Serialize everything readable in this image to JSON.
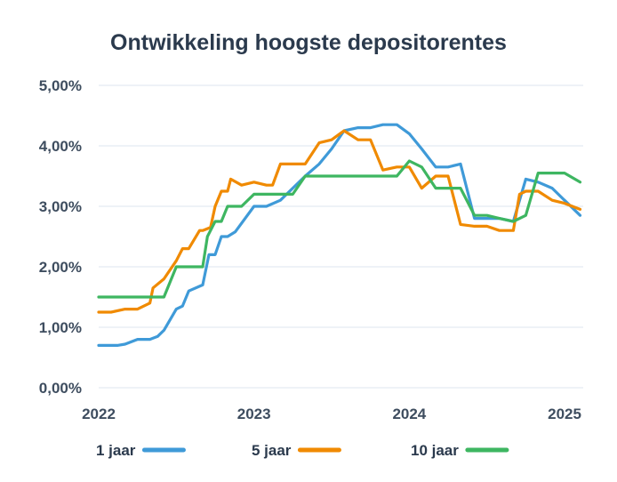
{
  "chart_data": {
    "type": "line",
    "title": "Ontwikkeling hoogste depositorentes",
    "xlabel": "",
    "ylabel": "",
    "xlim": [
      2022.0,
      2025.12
    ],
    "ylim": [
      0,
      5
    ],
    "y_ticks": [
      {
        "value": 0,
        "label": "0,00%"
      },
      {
        "value": 1,
        "label": "1,00%"
      },
      {
        "value": 2,
        "label": "2,00%"
      },
      {
        "value": 3,
        "label": "3,00%"
      },
      {
        "value": 4,
        "label": "4,00%"
      },
      {
        "value": 5,
        "label": "5,00%"
      }
    ],
    "x_ticks": [
      {
        "value": 2022,
        "label": "2022"
      },
      {
        "value": 2023,
        "label": "2023"
      },
      {
        "value": 2024,
        "label": "2024"
      },
      {
        "value": 2025,
        "label": "2025"
      }
    ],
    "grid": "horizontal",
    "legend_position": "bottom",
    "series": [
      {
        "name": "1 jaar",
        "color": "#3f9ad8",
        "points": [
          [
            2022.0,
            0.7
          ],
          [
            2022.12,
            0.7
          ],
          [
            2022.17,
            0.72
          ],
          [
            2022.25,
            0.8
          ],
          [
            2022.33,
            0.8
          ],
          [
            2022.38,
            0.85
          ],
          [
            2022.42,
            0.95
          ],
          [
            2022.5,
            1.3
          ],
          [
            2022.54,
            1.35
          ],
          [
            2022.58,
            1.6
          ],
          [
            2022.67,
            1.7
          ],
          [
            2022.71,
            2.2
          ],
          [
            2022.75,
            2.2
          ],
          [
            2022.79,
            2.5
          ],
          [
            2022.83,
            2.5
          ],
          [
            2022.88,
            2.58
          ],
          [
            2023.0,
            3.0
          ],
          [
            2023.08,
            3.0
          ],
          [
            2023.17,
            3.1
          ],
          [
            2023.25,
            3.3
          ],
          [
            2023.33,
            3.5
          ],
          [
            2023.42,
            3.7
          ],
          [
            2023.5,
            3.95
          ],
          [
            2023.58,
            4.25
          ],
          [
            2023.67,
            4.3
          ],
          [
            2023.75,
            4.3
          ],
          [
            2023.83,
            4.35
          ],
          [
            2023.92,
            4.35
          ],
          [
            2024.0,
            4.2
          ],
          [
            2024.08,
            3.95
          ],
          [
            2024.17,
            3.65
          ],
          [
            2024.25,
            3.65
          ],
          [
            2024.33,
            3.7
          ],
          [
            2024.42,
            2.8
          ],
          [
            2024.5,
            2.8
          ],
          [
            2024.58,
            2.8
          ],
          [
            2024.67,
            2.75
          ],
          [
            2024.75,
            3.45
          ],
          [
            2024.83,
            3.4
          ],
          [
            2024.92,
            3.3
          ],
          [
            2025.0,
            3.1
          ],
          [
            2025.1,
            2.85
          ]
        ]
      },
      {
        "name": "5 jaar",
        "color": "#f08a00",
        "points": [
          [
            2022.0,
            1.25
          ],
          [
            2022.08,
            1.25
          ],
          [
            2022.17,
            1.3
          ],
          [
            2022.25,
            1.3
          ],
          [
            2022.33,
            1.4
          ],
          [
            2022.35,
            1.65
          ],
          [
            2022.42,
            1.8
          ],
          [
            2022.5,
            2.1
          ],
          [
            2022.54,
            2.3
          ],
          [
            2022.58,
            2.3
          ],
          [
            2022.65,
            2.6
          ],
          [
            2022.67,
            2.6
          ],
          [
            2022.72,
            2.65
          ],
          [
            2022.75,
            3.0
          ],
          [
            2022.79,
            3.25
          ],
          [
            2022.83,
            3.25
          ],
          [
            2022.85,
            3.45
          ],
          [
            2022.92,
            3.35
          ],
          [
            2023.0,
            3.4
          ],
          [
            2023.08,
            3.35
          ],
          [
            2023.12,
            3.35
          ],
          [
            2023.17,
            3.7
          ],
          [
            2023.25,
            3.7
          ],
          [
            2023.33,
            3.7
          ],
          [
            2023.42,
            4.05
          ],
          [
            2023.5,
            4.1
          ],
          [
            2023.58,
            4.25
          ],
          [
            2023.67,
            4.1
          ],
          [
            2023.75,
            4.1
          ],
          [
            2023.83,
            3.6
          ],
          [
            2023.92,
            3.65
          ],
          [
            2024.0,
            3.65
          ],
          [
            2024.08,
            3.3
          ],
          [
            2024.17,
            3.5
          ],
          [
            2024.25,
            3.5
          ],
          [
            2024.33,
            2.7
          ],
          [
            2024.42,
            2.67
          ],
          [
            2024.5,
            2.67
          ],
          [
            2024.58,
            2.6
          ],
          [
            2024.67,
            2.6
          ],
          [
            2024.71,
            3.2
          ],
          [
            2024.75,
            3.25
          ],
          [
            2024.83,
            3.25
          ],
          [
            2024.92,
            3.1
          ],
          [
            2025.0,
            3.05
          ],
          [
            2025.1,
            2.95
          ]
        ]
      },
      {
        "name": "10 jaar",
        "color": "#3eb661",
        "points": [
          [
            2022.0,
            1.5
          ],
          [
            2022.42,
            1.5
          ],
          [
            2022.5,
            2.0
          ],
          [
            2022.67,
            2.0
          ],
          [
            2022.7,
            2.5
          ],
          [
            2022.75,
            2.75
          ],
          [
            2022.79,
            2.75
          ],
          [
            2022.83,
            3.0
          ],
          [
            2022.92,
            3.0
          ],
          [
            2023.0,
            3.2
          ],
          [
            2023.25,
            3.2
          ],
          [
            2023.33,
            3.5
          ],
          [
            2023.5,
            3.5
          ],
          [
            2023.92,
            3.5
          ],
          [
            2024.0,
            3.75
          ],
          [
            2024.08,
            3.65
          ],
          [
            2024.17,
            3.3
          ],
          [
            2024.33,
            3.3
          ],
          [
            2024.42,
            2.85
          ],
          [
            2024.5,
            2.85
          ],
          [
            2024.58,
            2.8
          ],
          [
            2024.67,
            2.75
          ],
          [
            2024.75,
            2.85
          ],
          [
            2024.83,
            3.55
          ],
          [
            2024.92,
            3.55
          ],
          [
            2025.0,
            3.55
          ],
          [
            2025.1,
            3.4
          ]
        ]
      }
    ]
  }
}
